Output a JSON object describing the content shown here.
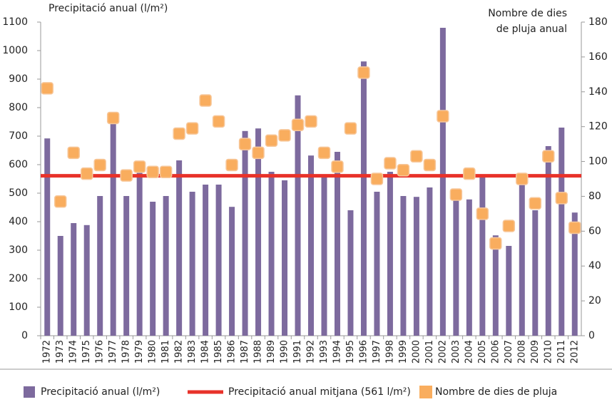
{
  "chart_data": {
    "type": "bar",
    "ylabel": "Precipitació anual (l/m²)",
    "y2label": [
      "Nombre de dies",
      "de pluja anual"
    ],
    "categories": [
      "1972",
      "1973",
      "1974",
      "1975",
      "1976",
      "1977",
      "1978",
      "1979",
      "1980",
      "1981",
      "1982",
      "1983",
      "1984",
      "1985",
      "1986",
      "1987",
      "1988",
      "1989",
      "1990",
      "1991",
      "1992",
      "1993",
      "1994",
      "1995",
      "1996",
      "1997",
      "1998",
      "1999",
      "2000",
      "2001",
      "2002",
      "2003",
      "2004",
      "2005",
      "2006",
      "2007",
      "2008",
      "2009",
      "2010",
      "2011",
      "2012"
    ],
    "series": [
      {
        "name": "Precipitació anual (l/m²)",
        "type": "bar",
        "color": "#7d6a9e",
        "values": [
          692,
          350,
          395,
          388,
          490,
          760,
          490,
          575,
          470,
          490,
          615,
          505,
          530,
          530,
          452,
          718,
          727,
          575,
          545,
          843,
          632,
          558,
          645,
          440,
          962,
          505,
          575,
          490,
          487,
          520,
          1080,
          485,
          478,
          558,
          352,
          315,
          532,
          440,
          665,
          730,
          432
        ]
      },
      {
        "name": "Nombre de dies de pluja",
        "type": "scatter",
        "axis": "y2",
        "color": "#f9ad5e",
        "values": [
          142,
          77,
          105,
          93,
          98,
          125,
          92,
          97,
          94,
          94,
          116,
          119,
          135,
          123,
          98,
          110,
          105,
          112,
          115,
          121,
          123,
          105,
          97,
          119,
          151,
          90,
          99,
          95,
          103,
          98,
          126,
          81,
          93,
          70,
          53,
          63,
          90,
          76,
          103,
          79,
          62
        ]
      }
    ],
    "mean_line": {
      "name": "Precipitació anual mitjana (561 l/m²)",
      "value": 561,
      "color": "#e8322a"
    },
    "ylim": [
      0,
      1100
    ],
    "yticks": [
      0,
      100,
      200,
      300,
      400,
      500,
      600,
      700,
      800,
      900,
      1000,
      1100
    ],
    "y2lim": [
      0,
      180
    ],
    "y2ticks": [
      0,
      20,
      40,
      60,
      80,
      100,
      120,
      140,
      160,
      180
    ]
  }
}
